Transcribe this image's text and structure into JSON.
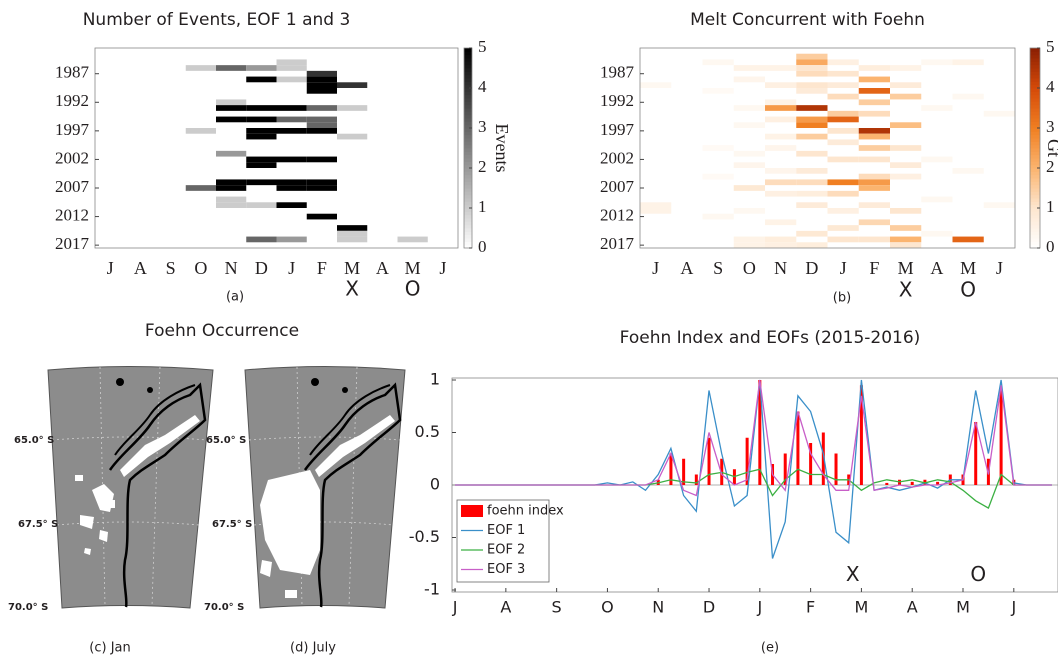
{
  "chart_data": [
    {
      "type": "heatmap",
      "title": "Number of Events, EOF 1 and 3",
      "caption": "(a)",
      "categories": [
        "J",
        "A",
        "S",
        "O",
        "N",
        "D",
        "J",
        "F",
        "M",
        "A",
        "M",
        "J"
      ],
      "ylim": [
        2017.5,
        1982.5
      ],
      "yticks": [
        1987,
        1992,
        1997,
        2002,
        2007,
        2012,
        2017
      ],
      "clim": [
        0,
        5
      ],
      "cticks": [
        0,
        1,
        2,
        3,
        4,
        5
      ],
      "colorbar_label": "Events",
      "colormap": [
        "#ffffff",
        "#000000"
      ],
      "annotations": [
        {
          "text": "X",
          "x": 8,
          "color": "#ee4fa3"
        },
        {
          "text": "O",
          "x": 10,
          "color": "#ee4fa3"
        }
      ],
      "cells": [
        [
          3,
          1986,
          1
        ],
        [
          4,
          1986,
          3
        ],
        [
          5,
          1986,
          2
        ],
        [
          6,
          1985,
          1
        ],
        [
          6,
          1986,
          1
        ],
        [
          5,
          1988,
          5
        ],
        [
          6,
          1988,
          1
        ],
        [
          7,
          1987,
          4
        ],
        [
          7,
          1988,
          5
        ],
        [
          7,
          1989,
          5
        ],
        [
          7,
          1990,
          5
        ],
        [
          8,
          1989,
          4
        ],
        [
          4,
          1992,
          1
        ],
        [
          4,
          1993,
          5
        ],
        [
          5,
          1993,
          5
        ],
        [
          6,
          1993,
          5
        ],
        [
          7,
          1993,
          3
        ],
        [
          8,
          1993,
          1
        ],
        [
          4,
          1995,
          5
        ],
        [
          5,
          1995,
          5
        ],
        [
          6,
          1995,
          3
        ],
        [
          7,
          1995,
          3
        ],
        [
          7,
          1996,
          3
        ],
        [
          3,
          1997,
          1
        ],
        [
          5,
          1997,
          5
        ],
        [
          5,
          1998,
          5
        ],
        [
          6,
          1997,
          5
        ],
        [
          7,
          1997,
          5
        ],
        [
          8,
          1998,
          1
        ],
        [
          4,
          2001,
          2
        ],
        [
          5,
          2002,
          5
        ],
        [
          6,
          2002,
          5
        ],
        [
          7,
          2002,
          5
        ],
        [
          5,
          2003,
          5
        ],
        [
          3,
          2007,
          3
        ],
        [
          4,
          2006,
          5
        ],
        [
          4,
          2007,
          5
        ],
        [
          5,
          2006,
          5
        ],
        [
          6,
          2006,
          5
        ],
        [
          6,
          2007,
          5
        ],
        [
          7,
          2006,
          5
        ],
        [
          7,
          2007,
          5
        ],
        [
          4,
          2009,
          1
        ],
        [
          4,
          2010,
          1
        ],
        [
          5,
          2010,
          1
        ],
        [
          6,
          2010,
          5
        ],
        [
          7,
          2012,
          5
        ],
        [
          8,
          2014,
          5
        ],
        [
          8,
          2015,
          1
        ],
        [
          8,
          2016,
          1
        ],
        [
          5,
          2016,
          3
        ],
        [
          6,
          2016,
          2
        ],
        [
          10,
          2016,
          1
        ]
      ]
    },
    {
      "type": "heatmap",
      "title": "Melt Concurrent with Foehn",
      "caption": "(b)",
      "categories": [
        "J",
        "A",
        "S",
        "O",
        "N",
        "D",
        "J",
        "F",
        "M",
        "A",
        "M",
        "J"
      ],
      "ylim": [
        2017.5,
        1982.5
      ],
      "yticks": [
        1987,
        1992,
        1997,
        2002,
        2007,
        2012,
        2017
      ],
      "clim": [
        0,
        5
      ],
      "cticks": [
        0,
        1,
        2,
        3,
        4,
        5
      ],
      "colorbar_label": "Gt",
      "colormap": [
        "#ffffff",
        "#fde6cf",
        "#fbb46f",
        "#f07f22",
        "#d54a09",
        "#8b1f03"
      ],
      "annotations": [
        {
          "text": "X",
          "x": 8,
          "color": "#ee4fa3"
        },
        {
          "text": "O",
          "x": 10,
          "color": "#ee4fa3"
        }
      ],
      "cells": [
        [
          0,
          1989,
          0.3
        ],
        [
          0,
          2010,
          0.5
        ],
        [
          0,
          2011,
          0.5
        ],
        [
          2,
          1985,
          0.3
        ],
        [
          2,
          1990,
          0.2
        ],
        [
          2,
          2000,
          0.2
        ],
        [
          2,
          2005,
          0.2
        ],
        [
          2,
          2012,
          0.3
        ],
        [
          3,
          1986,
          0.5
        ],
        [
          3,
          1988,
          0.4
        ],
        [
          3,
          1993,
          0.3
        ],
        [
          3,
          1996,
          0.3
        ],
        [
          3,
          2001,
          0.3
        ],
        [
          3,
          2003,
          0.4
        ],
        [
          3,
          2007,
          0.9
        ],
        [
          3,
          2011,
          0.3
        ],
        [
          3,
          2016,
          0.5
        ],
        [
          3,
          2017,
          0.5
        ],
        [
          4,
          1986,
          0.5
        ],
        [
          4,
          1989,
          0.6
        ],
        [
          4,
          1992,
          0.5
        ],
        [
          4,
          1993,
          2.5
        ],
        [
          4,
          1995,
          0.6
        ],
        [
          4,
          1998,
          0.5
        ],
        [
          4,
          2000,
          0.4
        ],
        [
          4,
          2004,
          0.4
        ],
        [
          4,
          2006,
          1.2
        ],
        [
          4,
          2008,
          0.6
        ],
        [
          4,
          2013,
          0.5
        ],
        [
          4,
          2016,
          0.7
        ],
        [
          4,
          2017,
          0.6
        ],
        [
          5,
          1984,
          1.5
        ],
        [
          5,
          1985,
          2.2
        ],
        [
          5,
          1986,
          1.0
        ],
        [
          5,
          1987,
          1.2
        ],
        [
          5,
          1989,
          1.0
        ],
        [
          5,
          1990,
          0.8
        ],
        [
          5,
          1993,
          4.5
        ],
        [
          5,
          1995,
          2.5
        ],
        [
          5,
          1996,
          3.0
        ],
        [
          5,
          1998,
          1.5
        ],
        [
          5,
          2001,
          1.0
        ],
        [
          5,
          2004,
          0.8
        ],
        [
          5,
          2006,
          1.2
        ],
        [
          5,
          2008,
          0.7
        ],
        [
          5,
          2010,
          0.8
        ],
        [
          5,
          2015,
          0.9
        ],
        [
          5,
          2017,
          0.7
        ],
        [
          6,
          1985,
          0.6
        ],
        [
          6,
          1987,
          1.0
        ],
        [
          6,
          1989,
          0.8
        ],
        [
          6,
          1991,
          1.2
        ],
        [
          6,
          1994,
          1.5
        ],
        [
          6,
          1995,
          3.5
        ],
        [
          6,
          1997,
          1.0
        ],
        [
          6,
          1999,
          0.8
        ],
        [
          6,
          2002,
          1.0
        ],
        [
          6,
          2006,
          3.0
        ],
        [
          6,
          2008,
          1.2
        ],
        [
          6,
          2011,
          0.6
        ],
        [
          6,
          2014,
          0.9
        ],
        [
          6,
          2016,
          1.0
        ],
        [
          7,
          1986,
          0.7
        ],
        [
          7,
          1988,
          2.0
        ],
        [
          7,
          1990,
          3.5
        ],
        [
          7,
          1992,
          1.5
        ],
        [
          7,
          1994,
          1.2
        ],
        [
          7,
          1997,
          4.5
        ],
        [
          7,
          1998,
          2.0
        ],
        [
          7,
          2000,
          1.5
        ],
        [
          7,
          2002,
          1.0
        ],
        [
          7,
          2005,
          1.2
        ],
        [
          7,
          2006,
          2.5
        ],
        [
          7,
          2007,
          2.0
        ],
        [
          7,
          2010,
          0.8
        ],
        [
          7,
          2013,
          1.3
        ],
        [
          7,
          2016,
          1.0
        ],
        [
          8,
          1986,
          0.5
        ],
        [
          8,
          1989,
          0.8
        ],
        [
          8,
          1991,
          1.5
        ],
        [
          8,
          1996,
          1.8
        ],
        [
          8,
          2000,
          1.0
        ],
        [
          8,
          2003,
          0.8
        ],
        [
          8,
          2005,
          0.6
        ],
        [
          8,
          2011,
          1.0
        ],
        [
          8,
          2014,
          1.5
        ],
        [
          8,
          2016,
          2.0
        ],
        [
          8,
          2017,
          1.0
        ],
        [
          9,
          1985,
          0.3
        ],
        [
          9,
          1993,
          0.3
        ],
        [
          9,
          2002,
          0.3
        ],
        [
          9,
          2009,
          0.3
        ],
        [
          9,
          2015,
          0.3
        ],
        [
          10,
          1985,
          0.5
        ],
        [
          10,
          1991,
          0.3
        ],
        [
          10,
          2004,
          0.3
        ],
        [
          10,
          2016,
          3.5
        ],
        [
          11,
          1994,
          0.3
        ],
        [
          11,
          2010,
          0.3
        ]
      ]
    },
    {
      "type": "map",
      "title": "Foehn Occurrence",
      "caption": "(c) Jan",
      "lat_labels": [
        "65.0° S",
        "67.5° S",
        "70.0° S"
      ]
    },
    {
      "type": "map",
      "caption": "(d) July",
      "lat_labels": [
        "65.0° S",
        "67.5° S",
        "70.0° S"
      ]
    },
    {
      "type": "line",
      "title": "Foehn Index and EOFs (2015-2016)",
      "caption": "(e)",
      "x": [
        0,
        0.25,
        0.5,
        0.75,
        1,
        1.25,
        1.5,
        1.75,
        2,
        2.25,
        2.5,
        2.75,
        3,
        3.25,
        3.5,
        3.75,
        4,
        4.25,
        4.5,
        4.75,
        5,
        5.25,
        5.5,
        5.75,
        6,
        6.25,
        6.5,
        6.75,
        7,
        7.25,
        7.5,
        7.75,
        8,
        8.25,
        8.5,
        8.75,
        9,
        9.25,
        9.5,
        9.75,
        10,
        10.25,
        10.5,
        10.75,
        11,
        11.25,
        11.5,
        11.75
      ],
      "xlim": [
        -0.06,
        11.87
      ],
      "xticks": [
        {
          "value": 0,
          "label": "J"
        },
        {
          "value": 1,
          "label": "A"
        },
        {
          "value": 2,
          "label": "S"
        },
        {
          "value": 3,
          "label": "O"
        },
        {
          "value": 4,
          "label": "N"
        },
        {
          "value": 5,
          "label": "D"
        },
        {
          "value": 6,
          "label": "J"
        },
        {
          "value": 7,
          "label": "F"
        },
        {
          "value": 8,
          "label": "M"
        },
        {
          "value": 9,
          "label": "A"
        },
        {
          "value": 10,
          "label": "M"
        },
        {
          "value": 11,
          "label": "J"
        }
      ],
      "ylim": [
        -1,
        1
      ],
      "yticks": [
        -1,
        -0.5,
        0,
        0.5,
        1
      ],
      "legend": "lower left",
      "annotations": [
        {
          "text": "X",
          "x": 7.83,
          "y": -0.86,
          "color": "#ee4fa3"
        },
        {
          "text": "O",
          "x": 10.3,
          "y": -0.86,
          "color": "#ee4fa3"
        }
      ],
      "series": [
        {
          "name": "foehn index",
          "color": "#ff0000",
          "kind": "bar",
          "values": [
            0,
            0,
            0,
            0,
            0,
            0,
            0,
            0,
            0,
            0,
            0,
            0,
            0,
            0,
            0,
            0,
            0.05,
            0.3,
            0.25,
            0.1,
            0.45,
            0.25,
            0.15,
            0.45,
            1.0,
            0.2,
            0.3,
            0.7,
            0.4,
            0.5,
            0.3,
            0.1,
            0.95,
            0,
            0.02,
            0.05,
            0.03,
            0.05,
            0.03,
            0.1,
            0.1,
            0.6,
            0.25,
            0.9,
            0.05,
            0,
            0,
            0
          ]
        },
        {
          "name": "EOF 1",
          "color": "#3a8fc9",
          "kind": "line",
          "values": [
            0,
            0,
            0,
            0,
            0,
            0,
            0,
            0,
            0,
            0,
            0,
            0,
            0.02,
            0,
            0.03,
            -0.05,
            0.1,
            0.35,
            -0.1,
            -0.25,
            0.9,
            0.3,
            -0.2,
            -0.1,
            1.0,
            -0.7,
            -0.35,
            0.85,
            0.7,
            0.3,
            -0.45,
            -0.55,
            1.0,
            -0.05,
            -0.02,
            -0.05,
            -0.02,
            0.02,
            -0.03,
            0.05,
            0.05,
            0.9,
            0.3,
            1.0,
            0.02,
            0,
            0,
            0
          ]
        },
        {
          "name": "EOF 2",
          "color": "#3cb043",
          "kind": "line",
          "values": [
            0,
            0,
            0,
            0,
            0,
            0,
            0,
            0,
            0,
            0,
            0,
            0,
            0,
            0,
            0,
            0,
            0.02,
            0.05,
            0.03,
            0.02,
            0.1,
            0.12,
            0.08,
            0.12,
            0.15,
            -0.1,
            0.05,
            0.15,
            0.1,
            0.1,
            0.05,
            0.05,
            -0.05,
            0.02,
            0.05,
            0.03,
            0.05,
            0.02,
            0.05,
            0.03,
            -0.05,
            -0.15,
            -0.22,
            0.1,
            0,
            0,
            0,
            0
          ]
        },
        {
          "name": "EOF 3",
          "color": "#c85fc8",
          "kind": "line",
          "values": [
            0,
            0,
            0,
            0,
            0,
            0,
            0,
            0,
            0,
            0,
            0,
            0,
            0,
            0,
            0,
            0,
            0.05,
            0.3,
            -0.05,
            -0.1,
            0.5,
            0.1,
            0,
            0.05,
            1.0,
            0.1,
            -0.05,
            0.7,
            0.3,
            0.1,
            -0.05,
            -0.05,
            0.85,
            -0.05,
            -0.03,
            0,
            -0.02,
            0,
            0,
            0.02,
            0.05,
            0.6,
            0.1,
            0.95,
            0,
            0,
            0,
            0
          ]
        }
      ]
    }
  ]
}
